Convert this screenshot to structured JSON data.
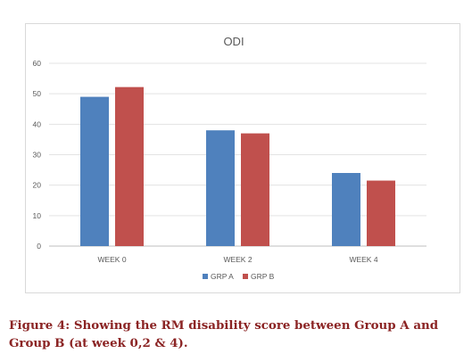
{
  "chart_data": {
    "type": "bar",
    "title": "ODI",
    "categories": [
      "WEEK 0",
      "WEEK 2",
      "WEEK 4"
    ],
    "series": [
      {
        "name": "GRP A",
        "values": [
          49,
          38,
          24
        ],
        "color": "#4f81bd"
      },
      {
        "name": "GRP B",
        "values": [
          52.2,
          37,
          21.5
        ],
        "color": "#c0504d"
      }
    ],
    "ylim": [
      0,
      60
    ],
    "yticks": [
      "0",
      "10",
      "20",
      "30",
      "40",
      "50",
      "60"
    ],
    "grid": true,
    "legend_position": "bottom"
  },
  "caption": "Figure 4: Showing the RM disability score between Group A and Group B (at week 0,2 & 4)."
}
